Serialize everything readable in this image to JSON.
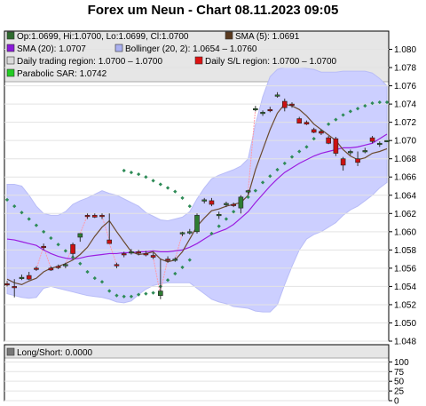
{
  "title": "Forex um Neun - Chart 08.11.2023 09:05",
  "legend": [
    {
      "label": "Op:1.0699, Hi:1.0700, Lo:1.0699, Cl:1.0700",
      "color": "#2e6b2e",
      "marker": "square"
    },
    {
      "label": "SMA (5): 1.0691",
      "color": "#5a3a1f",
      "marker": "square"
    },
    {
      "label": "SMA (20): 1.0707",
      "color": "#8a1ad9",
      "marker": "square"
    },
    {
      "label": "Bollinger (20, 2): 1.0654 – 1.0760",
      "color": "#aab0f0",
      "marker": "square"
    },
    {
      "label": "Daily trading region: 1.0700 – 1.0700",
      "color": "#d9d9d9",
      "marker": "square"
    },
    {
      "label": "Daily S/L region: 1.0700 – 1.0700",
      "color": "#dd1111",
      "marker": "square"
    },
    {
      "label": "Parabolic SAR: 1.0742",
      "color": "#22cc22",
      "marker": "square"
    }
  ],
  "sub_legend": [
    {
      "label": "Long/Short: 0.0000",
      "color": "#777777",
      "marker": "square"
    }
  ],
  "colors": {
    "bollinger_fill": "#cccfff",
    "sma5": "#6b4a2f",
    "sma20": "#9b1ee0",
    "sar": "#2e8b57",
    "bull": "#2e7d32",
    "bear": "#cc1111",
    "spike": "#ff9aa8"
  },
  "chart_data": [
    {
      "type": "candlestick",
      "ylim": [
        1.048,
        1.082
      ],
      "y_ticks": [
        "1.048",
        "1.050",
        "1.052",
        "1.054",
        "1.056",
        "1.058",
        "1.060",
        "1.062",
        "1.064",
        "1.066",
        "1.068",
        "1.070",
        "1.072",
        "1.074",
        "1.076",
        "1.078",
        "1.080"
      ],
      "candles": [
        {
          "o": 1.0543,
          "h": 1.0546,
          "l": 1.054,
          "c": 1.0542
        },
        {
          "o": 1.054,
          "h": 1.0548,
          "l": 1.0528,
          "c": 1.0539
        },
        {
          "o": 1.055,
          "h": 1.0553,
          "l": 1.0547,
          "c": 1.055
        },
        {
          "o": 1.0552,
          "h": 1.0556,
          "l": 1.0547,
          "c": 1.0548
        },
        {
          "o": 1.056,
          "h": 1.0562,
          "l": 1.0557,
          "c": 1.0559
        },
        {
          "o": 1.0584,
          "h": 1.0587,
          "l": 1.058,
          "c": 1.0583
        },
        {
          "o": 1.056,
          "h": 1.0562,
          "l": 1.0557,
          "c": 1.0558
        },
        {
          "o": 1.0562,
          "h": 1.0564,
          "l": 1.0559,
          "c": 1.0561
        },
        {
          "o": 1.0563,
          "h": 1.0566,
          "l": 1.056,
          "c": 1.0564
        },
        {
          "o": 1.0586,
          "h": 1.0588,
          "l": 1.0572,
          "c": 1.0576
        },
        {
          "o": 1.0594,
          "h": 1.0598,
          "l": 1.0589,
          "c": 1.0598
        },
        {
          "o": 1.0618,
          "h": 1.062,
          "l": 1.0614,
          "c": 1.0617
        },
        {
          "o": 1.0618,
          "h": 1.062,
          "l": 1.0615,
          "c": 1.0616
        },
        {
          "o": 1.0618,
          "h": 1.062,
          "l": 1.0614,
          "c": 1.0617
        },
        {
          "o": 1.0591,
          "h": 1.062,
          "l": 1.0588,
          "c": 1.0587
        },
        {
          "o": 1.0564,
          "h": 1.0566,
          "l": 1.056,
          "c": 1.0563
        },
        {
          "o": 1.0576,
          "h": 1.0578,
          "l": 1.0572,
          "c": 1.0575
        },
        {
          "o": 1.0578,
          "h": 1.0581,
          "l": 1.0575,
          "c": 1.0578
        },
        {
          "o": 1.0578,
          "h": 1.058,
          "l": 1.0574,
          "c": 1.0577
        },
        {
          "o": 1.0576,
          "h": 1.0579,
          "l": 1.0573,
          "c": 1.0575
        },
        {
          "o": 1.0574,
          "h": 1.0577,
          "l": 1.057,
          "c": 1.0572
        },
        {
          "o": 1.053,
          "h": 1.057,
          "l": 1.0526,
          "c": 1.0535
        },
        {
          "o": 1.057,
          "h": 1.0573,
          "l": 1.0566,
          "c": 1.0569
        },
        {
          "o": 1.057,
          "h": 1.0572,
          "l": 1.0567,
          "c": 1.057
        },
        {
          "o": 1.0598,
          "h": 1.06,
          "l": 1.0595,
          "c": 1.0599
        },
        {
          "o": 1.06,
          "h": 1.0603,
          "l": 1.0597,
          "c": 1.06
        },
        {
          "o": 1.06,
          "h": 1.062,
          "l": 1.0598,
          "c": 1.0618
        },
        {
          "o": 1.0634,
          "h": 1.0637,
          "l": 1.0631,
          "c": 1.0635
        },
        {
          "o": 1.0634,
          "h": 1.0637,
          "l": 1.0628,
          "c": 1.063
        },
        {
          "o": 1.0618,
          "h": 1.0622,
          "l": 1.0614,
          "c": 1.0619
        },
        {
          "o": 1.063,
          "h": 1.0633,
          "l": 1.0627,
          "c": 1.0631
        },
        {
          "o": 1.063,
          "h": 1.0632,
          "l": 1.0627,
          "c": 1.0629
        },
        {
          "o": 1.0626,
          "h": 1.064,
          "l": 1.062,
          "c": 1.0638
        },
        {
          "o": 1.0644,
          "h": 1.0646,
          "l": 1.0641,
          "c": 1.0645
        },
        {
          "o": 1.0735,
          "h": 1.0738,
          "l": 1.0732,
          "c": 1.0735
        },
        {
          "o": 1.073,
          "h": 1.0733,
          "l": 1.0727,
          "c": 1.0731
        },
        {
          "o": 1.0734,
          "h": 1.0737,
          "l": 1.0731,
          "c": 1.0733
        },
        {
          "o": 1.075,
          "h": 1.0753,
          "l": 1.0747,
          "c": 1.075
        },
        {
          "o": 1.0743,
          "h": 1.0746,
          "l": 1.0732,
          "c": 1.0736
        },
        {
          "o": 1.074,
          "h": 1.0742,
          "l": 1.0736,
          "c": 1.0739
        },
        {
          "o": 1.0724,
          "h": 1.0726,
          "l": 1.0719,
          "c": 1.0719
        },
        {
          "o": 1.072,
          "h": 1.0722,
          "l": 1.0717,
          "c": 1.0718
        },
        {
          "o": 1.0712,
          "h": 1.0714,
          "l": 1.0708,
          "c": 1.0709
        },
        {
          "o": 1.071,
          "h": 1.0712,
          "l": 1.0706,
          "c": 1.0708
        },
        {
          "o": 1.0703,
          "h": 1.0705,
          "l": 1.0696,
          "c": 1.0697
        },
        {
          "o": 1.0702,
          "h": 1.0704,
          "l": 1.0683,
          "c": 1.0686
        },
        {
          "o": 1.068,
          "h": 1.0682,
          "l": 1.0667,
          "c": 1.0673
        },
        {
          "o": 1.0687,
          "h": 1.069,
          "l": 1.0684,
          "c": 1.0688
        },
        {
          "o": 1.068,
          "h": 1.0688,
          "l": 1.0672,
          "c": 1.0676
        },
        {
          "o": 1.0689,
          "h": 1.0692,
          "l": 1.0686,
          "c": 1.0689
        },
        {
          "o": 1.0703,
          "h": 1.0705,
          "l": 1.0697,
          "c": 1.0699
        },
        {
          "o": 1.0696,
          "h": 1.0699,
          "l": 1.0693,
          "c": 1.0697
        },
        {
          "o": 1.0699,
          "h": 1.07,
          "l": 1.0699,
          "c": 1.07
        }
      ],
      "sma5": [
        1.0548,
        1.0544,
        1.0542,
        1.0546,
        1.0549,
        1.0556,
        1.056,
        1.0562,
        1.0565,
        1.0569,
        1.0575,
        1.0583,
        1.0595,
        1.0605,
        1.0612,
        1.06,
        1.0589,
        1.0578,
        1.0575,
        1.0576,
        1.0578,
        1.057,
        1.0567,
        1.0569,
        1.0578,
        1.0592,
        1.0606,
        1.0615,
        1.0623,
        1.0625,
        1.0628,
        1.063,
        1.0632,
        1.064,
        1.0668,
        1.069,
        1.0712,
        1.073,
        1.074,
        1.0738,
        1.0734,
        1.0727,
        1.0718,
        1.0712,
        1.0706,
        1.07,
        1.069,
        1.0683,
        1.0679,
        1.0681,
        1.0686,
        1.0688,
        1.0691
      ],
      "sma20": [
        1.0592,
        1.0591,
        1.0589,
        1.0587,
        1.0585,
        1.058,
        1.0576,
        1.0573,
        1.0571,
        1.057,
        1.0571,
        1.0573,
        1.0574,
        1.0575,
        1.0576,
        1.0576,
        1.0577,
        1.0577,
        1.0578,
        1.0578,
        1.0579,
        1.0578,
        1.0578,
        1.0579,
        1.058,
        1.0583,
        1.0587,
        1.0592,
        1.0597,
        1.06,
        1.0603,
        1.0608,
        1.0615,
        1.0622,
        1.0632,
        1.0641,
        1.065,
        1.0658,
        1.0665,
        1.067,
        1.0675,
        1.0679,
        1.0683,
        1.0686,
        1.0688,
        1.069,
        1.0692,
        1.0692,
        1.0693,
        1.0695,
        1.0697,
        1.0702,
        1.0707
      ],
      "boll_upper": [
        1.0652,
        1.0652,
        1.065,
        1.064,
        1.0628,
        1.062,
        1.0618,
        1.0618,
        1.0622,
        1.063,
        1.0634,
        1.0637,
        1.0641,
        1.0645,
        1.0642,
        1.064,
        1.0636,
        1.0632,
        1.0628,
        1.0621,
        1.0617,
        1.0613,
        1.0612,
        1.0614,
        1.0616,
        1.0622,
        1.0636,
        1.0648,
        1.0658,
        1.0662,
        1.0665,
        1.0668,
        1.0672,
        1.068,
        1.0718,
        1.0748,
        1.077,
        1.0778,
        1.078,
        1.078,
        1.078,
        1.0779,
        1.0778,
        1.0775,
        1.0775,
        1.0775,
        1.0776,
        1.0776,
        1.0776,
        1.0776,
        1.0774,
        1.0768,
        1.076
      ],
      "boll_lower": [
        1.0532,
        1.053,
        1.0528,
        1.0527,
        1.0528,
        1.0538,
        1.054,
        1.0538,
        1.0536,
        1.0534,
        1.0532,
        1.053,
        1.0529,
        1.0528,
        1.0526,
        1.0523,
        1.0522,
        1.0524,
        1.0531,
        1.0537,
        1.0541,
        1.0543,
        1.0544,
        1.0544,
        1.0544,
        1.0544,
        1.0538,
        1.0532,
        1.0526,
        1.0523,
        1.0521,
        1.0518,
        1.0517,
        1.0516,
        1.0513,
        1.0512,
        1.0512,
        1.052,
        1.0542,
        1.0562,
        1.058,
        1.0592,
        1.0597,
        1.06,
        1.0605,
        1.061,
        1.0618,
        1.0624,
        1.0628,
        1.0634,
        1.064,
        1.0648,
        1.0654
      ],
      "sar": [
        1.0635,
        1.0628,
        1.0621,
        1.0614,
        1.0607,
        1.06,
        1.0593,
        1.0586,
        1.0579,
        1.0572,
        1.0565,
        1.0556,
        1.0549,
        1.0545,
        1.0535,
        1.053,
        1.0529,
        1.0529,
        1.0531,
        1.0532,
        1.0533,
        1.054,
        1.0547,
        1.0554,
        1.0561,
        1.0569,
        null,
        null,
        1.0598,
        1.0606,
        1.0614,
        1.0622,
        1.063,
        1.0638,
        1.0645,
        1.0654,
        1.0661,
        1.0668,
        1.0675,
        1.0682,
        1.0688,
        1.0693,
        1.0702,
        1.071,
        1.0718,
        1.0723,
        1.0728,
        1.0732,
        1.0735,
        1.0738,
        1.0741,
        1.0742,
        1.0742
      ],
      "sar_upper_segment": [
        1.0667,
        1.0665,
        1.0663,
        1.066,
        1.0656,
        1.0652,
        1.0648,
        1.0644,
        1.0637,
        1.0628
      ]
    },
    {
      "type": "line",
      "name": "Long/Short",
      "ylim": [
        0,
        110
      ],
      "y_ticks": [
        "0",
        "25",
        "50",
        "75",
        "100"
      ],
      "values": [
        0
      ]
    }
  ]
}
